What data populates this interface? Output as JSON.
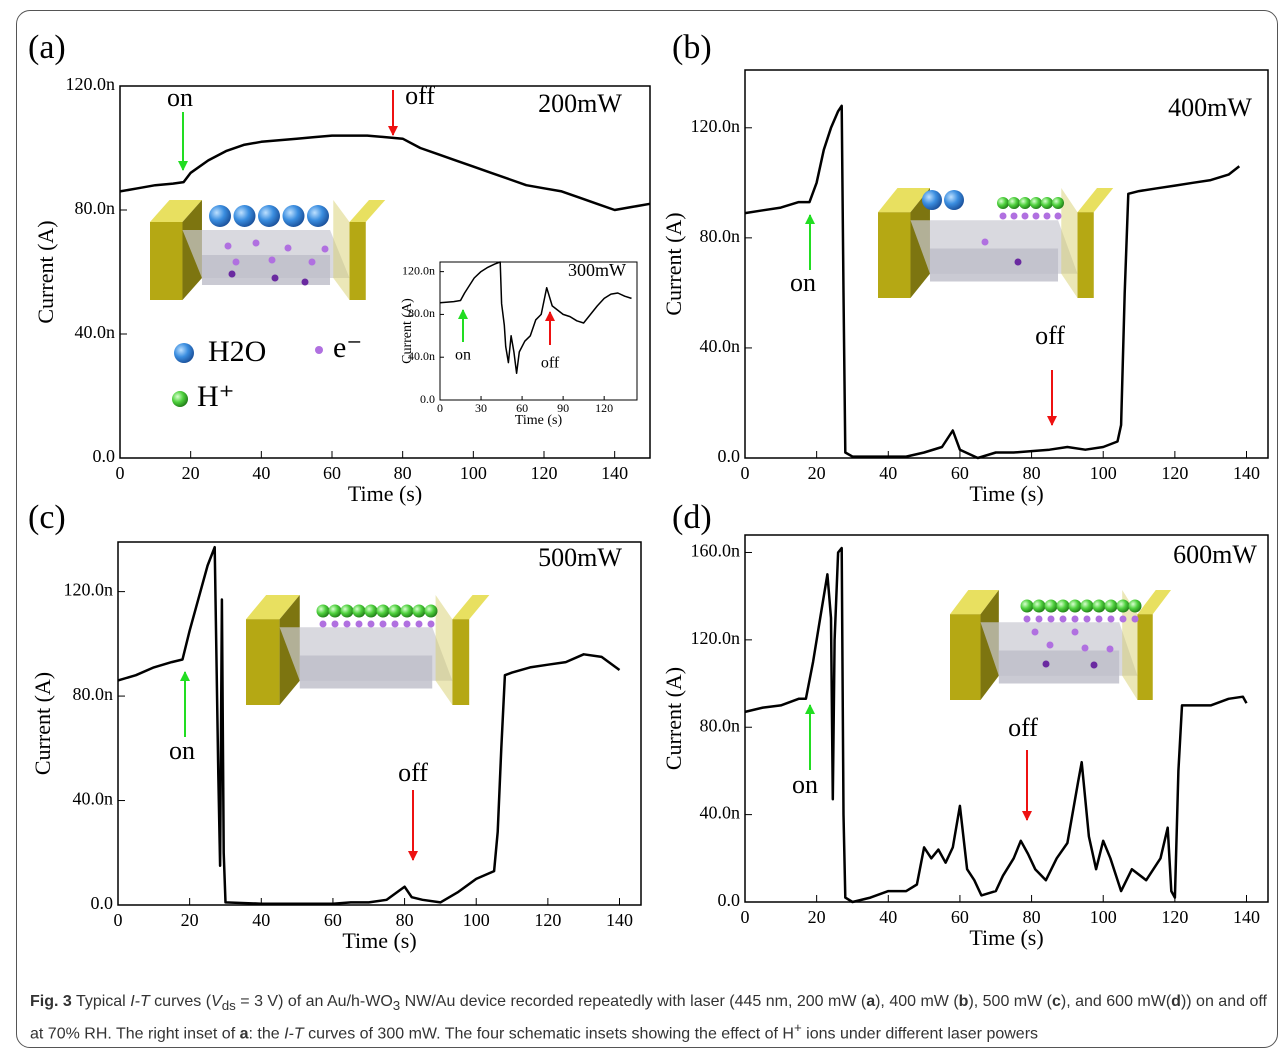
{
  "chart_data": [
    {
      "type": "line",
      "panel_label": "(a)",
      "label": "200mW",
      "x_label": "Time (s)",
      "y_label": "Current (A)",
      "color": "#000000",
      "x": [
        0,
        5,
        10,
        15,
        18,
        20,
        25,
        30,
        35,
        40,
        45,
        50,
        55,
        60,
        65,
        70,
        75,
        80,
        85,
        90,
        95,
        100,
        105,
        110,
        115,
        120,
        125,
        130,
        135,
        140,
        145,
        150
      ],
      "values": [
        8.6e-08,
        8.7e-08,
        8.8e-08,
        8.85e-08,
        8.9e-08,
        9.2e-08,
        9.6e-08,
        9.9e-08,
        1.01e-07,
        1.02e-07,
        1.025e-07,
        1.03e-07,
        1.035e-07,
        1.04e-07,
        1.04e-07,
        1.04e-07,
        1.035e-07,
        1.03e-07,
        1e-07,
        9.8e-08,
        9.6e-08,
        9.4e-08,
        9.2e-08,
        9e-08,
        8.8e-08,
        8.7e-08,
        8.6e-08,
        8.4e-08,
        8.2e-08,
        8e-08,
        8.1e-08,
        8.2e-08
      ],
      "xlim": [
        0,
        150
      ],
      "ylim": [
        0,
        1.2e-07
      ],
      "xticks": [
        0,
        20,
        40,
        60,
        80,
        100,
        120,
        140
      ],
      "yticks": [
        {
          "value": 0,
          "label": "0.0"
        },
        {
          "value": 4e-08,
          "label": "40.0n"
        },
        {
          "value": 8e-08,
          "label": "80.0n"
        },
        {
          "value": 1.2e-07,
          "label": "120.0n"
        }
      ],
      "annotations": [
        {
          "text": "on",
          "color": "#22dd22"
        },
        {
          "text": "off",
          "color": "#ee1111"
        }
      ],
      "schematic_legend": [
        "H2O",
        "e⁻",
        "H⁺"
      ]
    },
    {
      "type": "line",
      "panel_label": "(b)",
      "label": "400mW",
      "x_label": "Time (s)",
      "y_label": "Current (A)",
      "color": "#000000",
      "x": [
        0,
        5,
        10,
        15,
        18,
        20,
        22,
        24,
        26,
        27,
        27.5,
        28,
        30,
        40,
        45,
        50,
        55,
        58,
        60,
        65,
        70,
        75,
        80,
        85,
        90,
        95,
        100,
        104,
        105,
        106,
        107,
        110,
        115,
        120,
        125,
        130,
        135,
        138
      ],
      "values": [
        8.9e-08,
        9e-08,
        9.1e-08,
        9.3e-08,
        9.3e-08,
        1e-07,
        1.12e-07,
        1.2e-07,
        1.26e-07,
        1.28e-07,
        6e-08,
        2e-09,
        5e-10,
        5e-10,
        5e-10,
        2e-09,
        4e-09,
        1e-08,
        3e-09,
        0,
        2e-09,
        2e-09,
        2.5e-09,
        3e-09,
        4e-09,
        3e-09,
        4e-09,
        6e-09,
        1.2e-08,
        6e-08,
        9.6e-08,
        9.7e-08,
        9.8e-08,
        9.9e-08,
        1e-07,
        1.01e-07,
        1.03e-07,
        1.06e-07
      ],
      "xlim": [
        0,
        146
      ],
      "ylim": [
        0,
        1.41e-07
      ],
      "xticks": [
        0,
        20,
        40,
        60,
        80,
        100,
        120,
        140
      ],
      "yticks": [
        {
          "value": 0,
          "label": "0.0"
        },
        {
          "value": 4e-08,
          "label": "40.0n"
        },
        {
          "value": 8e-08,
          "label": "80.0n"
        },
        {
          "value": 1.2e-07,
          "label": "120.0n"
        }
      ],
      "annotations": [
        {
          "text": "on",
          "color": "#22dd22"
        },
        {
          "text": "off",
          "color": "#ee1111"
        }
      ]
    },
    {
      "type": "line",
      "panel_label": "(c)",
      "label": "500mW",
      "x_label": "Time (s)",
      "y_label": "Current (A)",
      "color": "#000000",
      "x": [
        0,
        5,
        10,
        15,
        18,
        20,
        22,
        25,
        27,
        28,
        28.5,
        29,
        29.5,
        30,
        40,
        50,
        60,
        65,
        70,
        75,
        80,
        82,
        85,
        90,
        95,
        100,
        105,
        106,
        107,
        108,
        110,
        115,
        120,
        125,
        130,
        135,
        140
      ],
      "values": [
        8.6e-08,
        8.8e-08,
        9.1e-08,
        9.3e-08,
        9.4e-08,
        1.05e-07,
        1.15e-07,
        1.3e-07,
        1.37e-07,
        5e-08,
        1.5e-08,
        1.17e-07,
        2e-08,
        1e-09,
        5e-10,
        5e-10,
        5e-10,
        1e-09,
        1e-09,
        2e-09,
        7e-09,
        3e-09,
        2e-09,
        1e-09,
        5e-09,
        1e-08,
        1.3e-08,
        2.8e-08,
        6e-08,
        8.8e-08,
        8.9e-08,
        9.1e-08,
        9.2e-08,
        9.3e-08,
        9.6e-08,
        9.5e-08,
        9e-08
      ],
      "xlim": [
        0,
        146
      ],
      "ylim": [
        0,
        1.39e-07
      ],
      "xticks": [
        0,
        20,
        40,
        60,
        80,
        100,
        120,
        140
      ],
      "yticks": [
        {
          "value": 0,
          "label": "0.0"
        },
        {
          "value": 4e-08,
          "label": "40.0n"
        },
        {
          "value": 8e-08,
          "label": "80.0n"
        },
        {
          "value": 1.2e-07,
          "label": "120.0n"
        }
      ],
      "annotations": [
        {
          "text": "on",
          "color": "#22dd22"
        },
        {
          "text": "off",
          "color": "#ee1111"
        }
      ]
    },
    {
      "type": "line",
      "panel_label": "(d)",
      "label": "600mW",
      "x_label": "Time (s)",
      "y_label": "Current (A)",
      "color": "#000000",
      "x": [
        0,
        5,
        10,
        15,
        17,
        19,
        21,
        23,
        24,
        24.5,
        25,
        26,
        27,
        27.5,
        28,
        30,
        35,
        40,
        45,
        48,
        50,
        52,
        54,
        56,
        58,
        60,
        62,
        64,
        66,
        70,
        72,
        75,
        77,
        79,
        81,
        84,
        87,
        90,
        93,
        94,
        96,
        98,
        100,
        102,
        105,
        108,
        112,
        116,
        118,
        119,
        120,
        121,
        122,
        125,
        130,
        135,
        139,
        140
      ],
      "values": [
        8.7e-08,
        8.9e-08,
        9e-08,
        9.3e-08,
        9.3e-08,
        1.1e-07,
        1.3e-07,
        1.5e-07,
        1.3e-07,
        4.7e-08,
        1.2e-07,
        1.6e-07,
        1.62e-07,
        4e-08,
        2e-09,
        0,
        2e-09,
        5e-09,
        5e-09,
        8e-09,
        2.5e-08,
        2e-08,
        2.4e-08,
        1.8e-08,
        2.5e-08,
        4.4e-08,
        1.5e-08,
        1e-08,
        3e-09,
        5e-09,
        1.2e-08,
        2e-08,
        2.8e-08,
        2.2e-08,
        1.5e-08,
        1e-08,
        2e-08,
        2.7e-08,
        5.5e-08,
        6.4e-08,
        3e-08,
        1.5e-08,
        2.8e-08,
        2e-08,
        5e-09,
        1.5e-08,
        1e-08,
        2e-08,
        3.4e-08,
        5e-09,
        2e-09,
        6e-08,
        9e-08,
        9e-08,
        9e-08,
        9.3e-08,
        9.4e-08,
        9.1e-08
      ],
      "xlim": [
        0,
        146
      ],
      "ylim": [
        0,
        1.68e-07
      ],
      "xticks": [
        0,
        20,
        40,
        60,
        80,
        100,
        120,
        140
      ],
      "yticks": [
        {
          "value": 0,
          "label": "0.0"
        },
        {
          "value": 4e-08,
          "label": "40.0n"
        },
        {
          "value": 8e-08,
          "label": "80.0n"
        },
        {
          "value": 1.2e-07,
          "label": "120.0n"
        },
        {
          "value": 1.6e-07,
          "label": "160.0n"
        }
      ],
      "annotations": [
        {
          "text": "on",
          "color": "#22dd22"
        },
        {
          "text": "off",
          "color": "#ee1111"
        }
      ]
    },
    {
      "type": "line",
      "label": "300mW",
      "x_label": "Time (s)",
      "y_label": "Current (A)",
      "color": "#000000",
      "x": [
        0,
        10,
        15,
        18,
        25,
        30,
        35,
        40,
        44,
        45,
        47,
        48,
        50,
        52,
        54,
        56,
        58,
        62,
        66,
        70,
        74,
        78,
        82,
        90,
        95,
        100,
        105,
        110,
        115,
        120,
        125,
        130,
        135,
        140
      ],
      "values": [
        9.1e-08,
        9.2e-08,
        9.3e-08,
        1e-07,
        1.14e-07,
        1.2e-07,
        1.24e-07,
        1.27e-07,
        1.29e-07,
        9e-08,
        7e-08,
        5e-08,
        3.5e-08,
        6e-08,
        4.5e-08,
        2.5e-08,
        4.5e-08,
        5.5e-08,
        6e-08,
        7.5e-08,
        8e-08,
        1.05e-07,
        8.8e-08,
        8e-08,
        7.8e-08,
        7.4e-08,
        7.2e-08,
        8e-08,
        8.8e-08,
        9.5e-08,
        9.9e-08,
        1e-07,
        9.7e-08,
        9.5e-08
      ],
      "xlim": [
        0,
        144
      ],
      "ylim": [
        0,
        1.29e-07
      ],
      "xticks": [
        0,
        30,
        60,
        90,
        120
      ],
      "yticks": [
        {
          "value": 0,
          "label": "0.0"
        },
        {
          "value": 4e-08,
          "label": "40.0n"
        },
        {
          "value": 8e-08,
          "label": "80.0n"
        },
        {
          "value": 1.2e-07,
          "label": "120.0n"
        }
      ],
      "annotations": [
        {
          "text": "on",
          "color": "#22dd22"
        },
        {
          "text": "off",
          "color": "#ee1111"
        }
      ]
    }
  ],
  "caption": [
    "Fig. 3",
    " Typical ",
    "I-T",
    " curves (",
    "V",
    "ds",
    " = 3 V) of an Au/h-WO",
    "3",
    " NW/Au device recorded repeatedly with laser (445 nm, 200 mW (",
    "a",
    "), 400 mW (",
    "b",
    "), 500 mW (",
    "c",
    "), and 600 mW(",
    "d",
    ")) on and off at 70% RH. The right inset of ",
    "a",
    ": the ",
    "I-T",
    " curves of 300 mW. The four schematic insets showing the effect of H",
    "+",
    " ions under different laser powers"
  ]
}
